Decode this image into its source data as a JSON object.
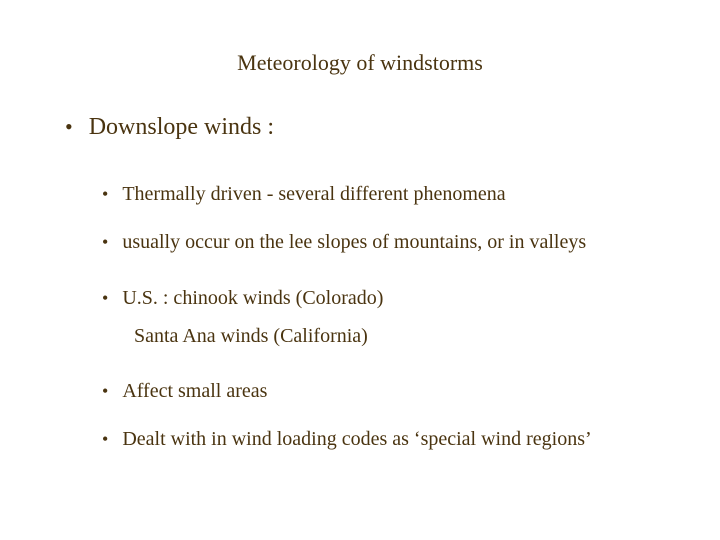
{
  "colors": {
    "text": "#4a3410",
    "background": "#ffffff"
  },
  "typography": {
    "font_family": "Times New Roman, Times, serif",
    "title_fontsize": 22,
    "main_bullet_fontsize": 24,
    "sub_bullet_fontsize": 20
  },
  "title": "Meteorology of windstorms",
  "main_bullet": "Downslope winds :",
  "sub_bullets": {
    "b1": "Thermally driven - several different phenomena",
    "b2": "usually occur on the lee slopes of mountains, or in valleys",
    "b3": "U.S. : chinook winds (Colorado)",
    "b3_cont": "Santa Ana winds (California)",
    "b4": "Affect small areas",
    "b5": "Dealt with in wind loading codes as ‘special wind  regions’"
  }
}
